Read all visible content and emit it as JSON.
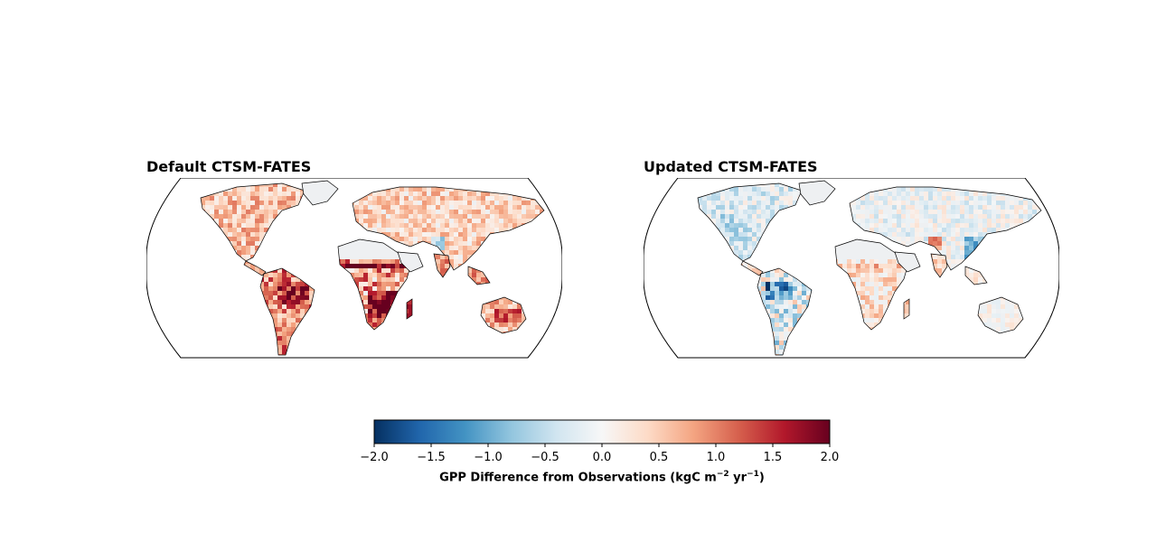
{
  "panels": [
    {
      "title": "Default CTSM-FATES",
      "name": "default"
    },
    {
      "title": "Updated CTSM-FATES",
      "name": "updated"
    }
  ],
  "colorbar": {
    "min": -2.0,
    "max": 2.0,
    "ticks": [
      "−2.0",
      "−1.5",
      "−1.0",
      "−0.5",
      "0.0",
      "0.5",
      "1.0",
      "1.5",
      "2.0"
    ],
    "label_main": "GPP Difference from Observations (kgC m",
    "label_exp1": "−2",
    "label_mid": " yr",
    "label_exp2": "−1",
    "label_end": ")",
    "colormap": [
      "#053061",
      "#2166ac",
      "#4393c3",
      "#92c5de",
      "#d1e5f0",
      "#f7f7f7",
      "#fddbc7",
      "#f4a582",
      "#d6604d",
      "#b2182b",
      "#67001f"
    ]
  },
  "regions": {
    "default": {
      "north_america": "light-red",
      "amazon": "red",
      "sahel_africa": "strong-red",
      "southern_africa": "strong-red",
      "europe_asia": "light-red",
      "tibet": "light-blue",
      "australia": "red"
    },
    "updated": {
      "north_america": "light-blue",
      "amazon": "blue",
      "sahel_africa": "light-red",
      "southern_africa": "light-red",
      "europe_asia": "light-blue",
      "east_china": "blue",
      "australia": "neutral"
    }
  }
}
